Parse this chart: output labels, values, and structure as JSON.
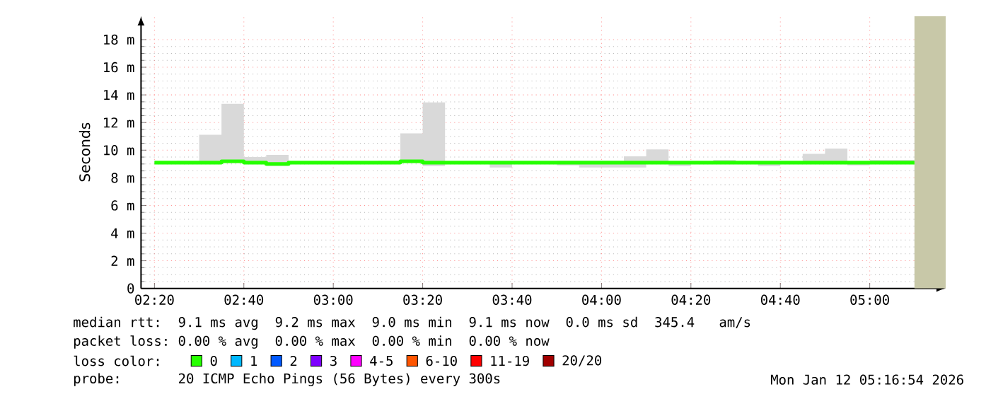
{
  "chart_data": {
    "type": "step",
    "ylabel": "Seconds",
    "x": [
      2.33333,
      2.41667,
      2.5,
      2.58333,
      2.66667,
      2.75,
      2.83333,
      2.91667,
      3,
      3.08333,
      3.16667,
      3.25,
      3.33333,
      3.41667,
      3.5,
      3.58333,
      3.66667,
      3.75,
      3.83333,
      3.91667,
      4,
      4.08333,
      4.16667,
      4.25,
      4.33333,
      4.41667,
      4.5,
      4.58333,
      4.66667,
      4.75,
      4.83333,
      4.91667,
      5,
      5.08333,
      5.16667
    ],
    "series": [
      {
        "name": "0",
        "color": "#26ff00",
        "values": [
          9.1,
          9.1,
          9.1,
          9.1,
          9.2,
          9.1,
          9.0,
          9.1,
          9.1,
          9.1,
          9.1,
          9.1,
          9.2,
          9.1,
          9.1,
          9.1,
          9.1,
          9.1,
          9.1,
          9.1,
          9.1,
          9.1,
          9.1,
          9.1,
          9.1,
          9.1,
          9.1,
          9.1,
          9.1,
          9.1,
          9.1,
          9.1,
          9.1,
          9.1,
          9.1
        ],
        "lower": [
          9.0,
          9.0,
          9.0,
          9.05,
          9.1,
          9.05,
          8.85,
          9.0,
          9.0,
          9.0,
          9.0,
          9.05,
          9.1,
          8.85,
          9.0,
          9.0,
          8.75,
          9.0,
          9.0,
          8.9,
          8.75,
          8.75,
          8.75,
          9.0,
          8.85,
          9.0,
          9.05,
          9.0,
          8.85,
          9.05,
          9.1,
          9.1,
          8.9,
          9.05,
          9.05
        ],
        "upper": [
          9.2,
          9.2,
          9.24,
          11.12,
          13.36,
          9.5,
          9.66,
          9.2,
          9.2,
          9.2,
          9.2,
          9.24,
          11.22,
          13.46,
          9.2,
          9.2,
          9.2,
          9.2,
          9.2,
          9.24,
          9.24,
          9.24,
          9.56,
          10.05,
          9.2,
          9.2,
          9.3,
          9.2,
          9.2,
          9.2,
          9.73,
          10.12,
          9.2,
          9.3,
          9.3
        ]
      },
      {
        "name": "1",
        "color": "#00b8ff",
        "values": [
          null,
          null,
          null,
          null,
          null,
          null,
          null,
          null,
          null,
          null,
          null,
          null,
          null,
          null,
          null,
          null,
          null,
          null,
          null,
          null,
          null,
          null,
          null,
          null,
          null,
          null,
          null,
          null,
          null,
          null,
          null,
          null,
          null,
          null,
          null
        ]
      },
      {
        "name": "2",
        "color": "#0059ff",
        "values": [
          null,
          null,
          null,
          null,
          null,
          null,
          null,
          null,
          null,
          null,
          null,
          null,
          null,
          null,
          null,
          null,
          null,
          null,
          null,
          null,
          null,
          null,
          null,
          null,
          null,
          null,
          null,
          null,
          null,
          null,
          null,
          null,
          null,
          null,
          null
        ]
      },
      {
        "name": "3",
        "color": "#7e00ff",
        "values": [
          null,
          null,
          null,
          null,
          null,
          null,
          null,
          null,
          null,
          null,
          null,
          null,
          null,
          null,
          null,
          null,
          null,
          null,
          null,
          null,
          null,
          null,
          null,
          null,
          null,
          null,
          null,
          null,
          null,
          null,
          null,
          null,
          null,
          null,
          null
        ]
      },
      {
        "name": "4-5",
        "color": "#ff00ff",
        "values": [
          null,
          null,
          null,
          null,
          null,
          null,
          null,
          null,
          null,
          null,
          null,
          null,
          null,
          null,
          null,
          null,
          null,
          null,
          null,
          null,
          null,
          null,
          null,
          null,
          null,
          null,
          null,
          null,
          null,
          null,
          null,
          null,
          null,
          null,
          null
        ]
      },
      {
        "name": "6-10",
        "color": "#ff5500",
        "values": [
          null,
          null,
          null,
          null,
          null,
          null,
          null,
          null,
          null,
          null,
          null,
          null,
          null,
          null,
          null,
          null,
          null,
          null,
          null,
          null,
          null,
          null,
          null,
          null,
          null,
          null,
          null,
          null,
          null,
          null,
          null,
          null,
          null,
          null,
          null
        ]
      },
      {
        "name": "11-19",
        "color": "#ff0000",
        "values": [
          null,
          null,
          null,
          null,
          null,
          null,
          null,
          null,
          null,
          null,
          null,
          null,
          null,
          null,
          null,
          null,
          null,
          null,
          null,
          null,
          null,
          null,
          null,
          null,
          null,
          null,
          null,
          null,
          null,
          null,
          null,
          null,
          null,
          null,
          null
        ]
      },
      {
        "name": "20/20",
        "color": "#a10000",
        "values": [
          null,
          null,
          null,
          null,
          null,
          null,
          null,
          null,
          null,
          null,
          null,
          null,
          null,
          null,
          null,
          null,
          null,
          null,
          null,
          null,
          null,
          null,
          null,
          null,
          null,
          null,
          null,
          null,
          null,
          null,
          null,
          null,
          null,
          null,
          null
        ]
      }
    ],
    "legend": "bottom",
    "legend_title": "loss color:",
    "bands": [
      {
        "axis": "x",
        "from": 5.16667,
        "to": 5.28333,
        "color": "#c8c8a8"
      }
    ],
    "xlim": [
      2.28333,
      5.28333
    ],
    "ylim": [
      0,
      19.7
    ],
    "xticks": [
      {
        "value": 2.33333,
        "label": "02:20"
      },
      {
        "value": 2.66667,
        "label": "02:40"
      },
      {
        "value": 3,
        "label": "03:00"
      },
      {
        "value": 3.33333,
        "label": "03:20"
      },
      {
        "value": 3.66667,
        "label": "03:40"
      },
      {
        "value": 4,
        "label": "04:00"
      },
      {
        "value": 4.33333,
        "label": "04:20"
      },
      {
        "value": 4.66667,
        "label": "04:40"
      },
      {
        "value": 5,
        "label": "05:00"
      }
    ],
    "yticks": [
      0,
      {
        "value": 2,
        "label": "2 m"
      },
      {
        "value": 4,
        "label": "4 m"
      },
      {
        "value": 6,
        "label": "6 m"
      },
      {
        "value": 8,
        "label": "8 m"
      },
      {
        "value": 10,
        "label": "10 m"
      },
      {
        "value": 12,
        "label": "12 m"
      },
      {
        "value": 14,
        "label": "14 m"
      },
      {
        "value": 16,
        "label": "16 m"
      },
      {
        "value": 18,
        "label": "18 m"
      }
    ],
    "grid": true,
    "line_style": "solid",
    "annotations": [
      "median rtt:  9.1 ms avg  9.2 ms max  9.0 ms min  9.1 ms now  0.0 ms sd  345.4   am/s",
      "packet loss: 0.00 % avg  0.00 % max  0.00 % min  0.00 % now",
      "probe:       20 ICMP Echo Pings (56 Bytes) every 300s",
      "Mon Jan 12 05:16:54 2026"
    ]
  }
}
